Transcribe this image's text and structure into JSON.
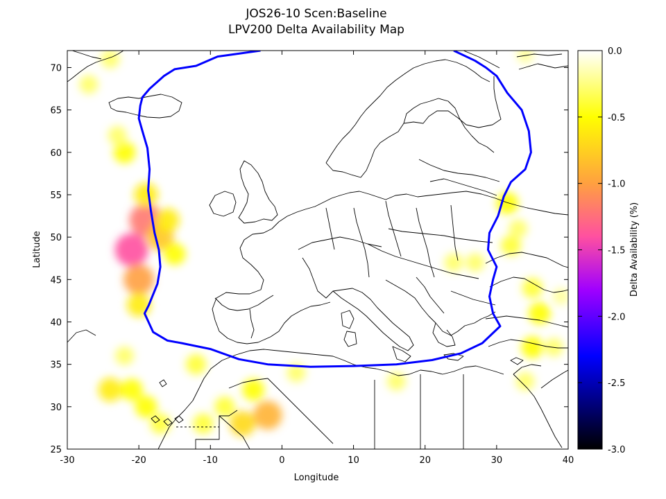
{
  "title_line1": "JOS26-10 Scen:Baseline",
  "title_line2": "LPV200 Delta Availability Map",
  "colors": {
    "boundary": "#0000ff",
    "coast": "#000000"
  },
  "chart_data": {
    "type": "heatmap",
    "title": "JOS26-10 Scen:Baseline LPV200 Delta Availability Map",
    "xlabel": "Longitude",
    "ylabel": "Latitude",
    "xlim": [
      -30,
      40
    ],
    "ylim": [
      25,
      72
    ],
    "xticks": [
      -30,
      -20,
      -10,
      0,
      10,
      20,
      30,
      40
    ],
    "yticks": [
      25,
      30,
      35,
      40,
      45,
      50,
      55,
      60,
      65,
      70
    ],
    "colorbar": {
      "label": "Delta Availability (%)",
      "range": [
        -3.0,
        0.0
      ],
      "ticks": [
        "0.0",
        "-0.5",
        "-1.0",
        "-1.5",
        "-2.0",
        "-2.5",
        "-3.0"
      ],
      "stops": [
        {
          "value": 0.0,
          "color": "#ffffff"
        },
        {
          "value": -0.5,
          "color": "#ffff00"
        },
        {
          "value": -1.0,
          "color": "#ffa040"
        },
        {
          "value": -1.4,
          "color": "#ff50a0"
        },
        {
          "value": -1.8,
          "color": "#a000ff"
        },
        {
          "value": -2.3,
          "color": "#0000ff"
        },
        {
          "value": -3.0,
          "color": "#000000"
        }
      ]
    },
    "hotspots": [
      {
        "lon": -21,
        "lat": 48.5,
        "value": -1.4
      },
      {
        "lon": -19,
        "lat": 52,
        "value": -1.2
      },
      {
        "lon": -20,
        "lat": 45,
        "value": -1.0
      },
      {
        "lon": -19,
        "lat": 55,
        "value": -0.6
      },
      {
        "lon": -17,
        "lat": 50,
        "value": -0.8
      },
      {
        "lon": -16,
        "lat": 52,
        "value": -0.6
      },
      {
        "lon": -15,
        "lat": 48,
        "value": -0.5
      },
      {
        "lon": -20,
        "lat": 42,
        "value": -0.6
      },
      {
        "lon": -22,
        "lat": 60,
        "value": -0.5
      },
      {
        "lon": -23,
        "lat": 62,
        "value": -0.3
      },
      {
        "lon": -27,
        "lat": 68,
        "value": -0.3
      },
      {
        "lon": -24,
        "lat": 71,
        "value": -0.3
      },
      {
        "lon": -24,
        "lat": 32,
        "value": -0.6
      },
      {
        "lon": -21,
        "lat": 32,
        "value": -0.5
      },
      {
        "lon": -19,
        "lat": 30,
        "value": -0.5
      },
      {
        "lon": -17,
        "lat": 28,
        "value": -0.4
      },
      {
        "lon": -22,
        "lat": 36,
        "value": -0.3
      },
      {
        "lon": -12,
        "lat": 35,
        "value": -0.4
      },
      {
        "lon": -8,
        "lat": 30,
        "value": -0.4
      },
      {
        "lon": -5.5,
        "lat": 28,
        "value": -0.7
      },
      {
        "lon": -2,
        "lat": 29,
        "value": -0.9
      },
      {
        "lon": -4,
        "lat": 32,
        "value": -0.5
      },
      {
        "lon": -11,
        "lat": 28,
        "value": -0.4
      },
      {
        "lon": 2,
        "lat": 34,
        "value": -0.3
      },
      {
        "lon": 16,
        "lat": 33,
        "value": -0.3
      },
      {
        "lon": 24,
        "lat": 47,
        "value": -0.3
      },
      {
        "lon": 27,
        "lat": 47,
        "value": -0.3
      },
      {
        "lon": 31.5,
        "lat": 54,
        "value": -0.5
      },
      {
        "lon": 32,
        "lat": 49,
        "value": -0.4
      },
      {
        "lon": 33,
        "lat": 51,
        "value": -0.3
      },
      {
        "lon": 35,
        "lat": 44,
        "value": -0.4
      },
      {
        "lon": 36,
        "lat": 41,
        "value": -0.5
      },
      {
        "lon": 38,
        "lat": 37,
        "value": -0.3
      },
      {
        "lon": 35,
        "lat": 37,
        "value": -0.5
      },
      {
        "lon": 34,
        "lat": 33,
        "value": -0.3
      },
      {
        "lon": 39,
        "lat": 43,
        "value": -0.2
      },
      {
        "lon": 34,
        "lat": 71.5,
        "value": -0.2
      }
    ],
    "lpv_coverage_boundary": [
      [
        -3,
        72
      ],
      [
        -9,
        71.3
      ],
      [
        -12,
        70.2
      ],
      [
        -15,
        69.8
      ],
      [
        -16.5,
        69.0
      ],
      [
        -18.5,
        67.5
      ],
      [
        -19.5,
        66.5
      ],
      [
        -19.8,
        65.5
      ],
      [
        -20.0,
        64.0
      ],
      [
        -19.5,
        62.5
      ],
      [
        -18.8,
        60.5
      ],
      [
        -18.5,
        58.0
      ],
      [
        -18.7,
        55.5
      ],
      [
        -18.3,
        53.0
      ],
      [
        -17.8,
        50.5
      ],
      [
        -17.2,
        48.5
      ],
      [
        -17.0,
        46.5
      ],
      [
        -17.4,
        44.5
      ],
      [
        -18.6,
        42.0
      ],
      [
        -19.2,
        41.0
      ],
      [
        -18.0,
        38.8
      ],
      [
        -16.0,
        37.8
      ],
      [
        -14.0,
        37.5
      ],
      [
        -10.0,
        36.8
      ],
      [
        -6.0,
        35.6
      ],
      [
        -2.0,
        35.0
      ],
      [
        4.0,
        34.7
      ],
      [
        10.0,
        34.8
      ],
      [
        16.0,
        35.0
      ],
      [
        21.0,
        35.5
      ],
      [
        25.0,
        36.3
      ],
      [
        28.0,
        37.5
      ],
      [
        30.5,
        39.5
      ],
      [
        29.5,
        41.0
      ],
      [
        29.0,
        43.0
      ],
      [
        29.5,
        45.0
      ],
      [
        30.0,
        46.5
      ],
      [
        28.8,
        48.5
      ],
      [
        29.0,
        50.5
      ],
      [
        30.2,
        52.5
      ],
      [
        31.0,
        54.8
      ],
      [
        32.0,
        56.5
      ],
      [
        34.0,
        58.0
      ],
      [
        34.8,
        60.0
      ],
      [
        34.5,
        62.5
      ],
      [
        33.5,
        65.0
      ],
      [
        31.5,
        67.0
      ],
      [
        30.0,
        69.0
      ],
      [
        28.5,
        70.0
      ],
      [
        27.0,
        70.8
      ],
      [
        24.0,
        72
      ]
    ]
  }
}
